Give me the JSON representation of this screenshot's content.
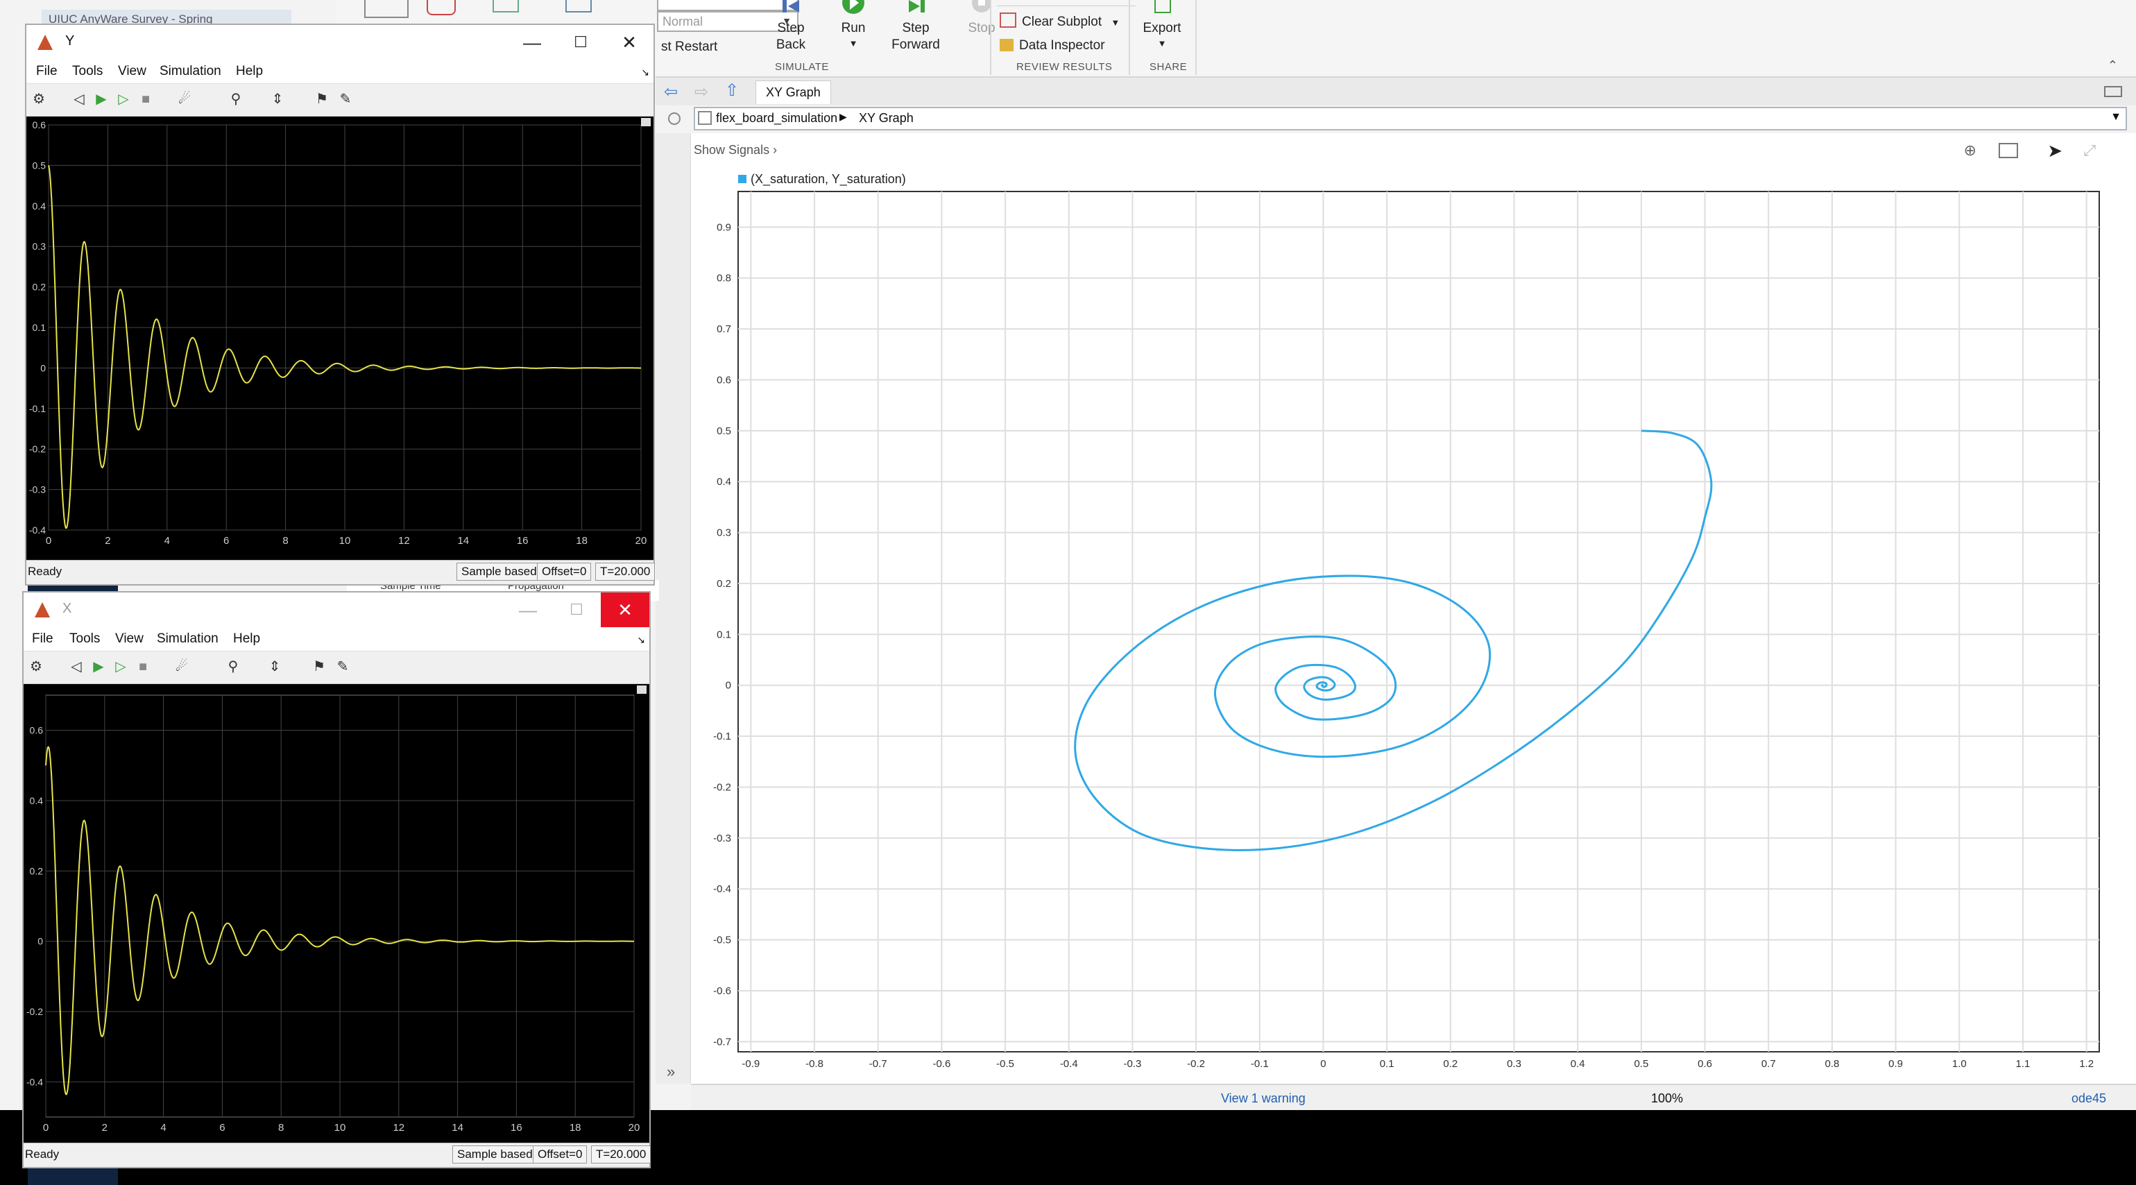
{
  "main": {
    "ribbon": {
      "mode_select": {
        "value": "Normal"
      },
      "fast_restart_label": "st Restart",
      "step_back": "Step Back",
      "run": "Run",
      "step_forward": "Step Forward",
      "stop": "Stop",
      "clear_subplot": "Clear Subplot",
      "data_inspector": "Data Inspector",
      "export": "Export",
      "groups": {
        "simulate": "SIMULATE",
        "review": "REVIEW RESULTS",
        "share": "SHARE"
      }
    },
    "tab_label": "XY Graph",
    "breadcrumb": {
      "model": "flex_board_simulation",
      "block": "XY Graph"
    },
    "show_signals": "Show Signals",
    "status": {
      "warning": "View 1 warning",
      "zoom": "100%",
      "solver": "ode45"
    },
    "colors": {
      "accent": "#2fa8e6",
      "series": "#2fa8e6",
      "trace": "#e6e34a",
      "close_red": "#e81123"
    }
  },
  "chart_data": [
    {
      "type": "line",
      "legend": "(X_saturation, Y_saturation)",
      "xlim": [
        -0.92,
        1.22
      ],
      "ylim": [
        -0.72,
        0.97
      ],
      "xticks": [
        "-0.9",
        "-0.8",
        "-0.7",
        "-0.6",
        "-0.5",
        "-0.4",
        "-0.3",
        "-0.2",
        "-0.1",
        "0",
        "0.1",
        "0.2",
        "0.3",
        "0.4",
        "0.5",
        "0.6",
        "0.7",
        "0.8",
        "0.9",
        "1.0",
        "1.1",
        "1.2"
      ],
      "yticks": [
        "0.9",
        "0.8",
        "0.7",
        "0.6",
        "0.5",
        "0.4",
        "0.3",
        "0.2",
        "0.1",
        "0",
        "-0.1",
        "-0.2",
        "-0.3",
        "-0.4",
        "-0.5",
        "-0.6",
        "-0.7"
      ],
      "grid": true,
      "series": [
        {
          "points": [
            [
              0.5,
              0.5
            ],
            [
              0.55,
              0.495
            ],
            [
              0.59,
              0.47
            ],
            [
              0.61,
              0.4
            ],
            [
              0.6,
              0.33
            ],
            [
              0.58,
              0.25
            ],
            [
              0.53,
              0.14
            ],
            [
              0.47,
              0.04
            ],
            [
              0.38,
              -0.06
            ],
            [
              0.28,
              -0.15
            ],
            [
              0.17,
              -0.23
            ],
            [
              0.05,
              -0.29
            ],
            [
              -0.07,
              -0.32
            ],
            [
              -0.19,
              -0.32
            ],
            [
              -0.29,
              -0.29
            ],
            [
              -0.36,
              -0.22
            ],
            [
              -0.39,
              -0.13
            ],
            [
              -0.37,
              -0.03
            ],
            [
              -0.3,
              0.07
            ],
            [
              -0.2,
              0.15
            ],
            [
              -0.08,
              0.2
            ],
            [
              0.04,
              0.215
            ],
            [
              0.14,
              0.2
            ],
            [
              0.22,
              0.15
            ],
            [
              0.26,
              0.08
            ],
            [
              0.25,
              0.0
            ],
            [
              0.2,
              -0.07
            ],
            [
              0.12,
              -0.12
            ],
            [
              0.02,
              -0.14
            ],
            [
              -0.07,
              -0.13
            ],
            [
              -0.14,
              -0.09
            ],
            [
              -0.17,
              -0.02
            ],
            [
              -0.15,
              0.04
            ],
            [
              -0.1,
              0.08
            ],
            [
              -0.03,
              0.095
            ],
            [
              0.03,
              0.09
            ],
            [
              0.08,
              0.06
            ],
            [
              0.11,
              0.02
            ],
            [
              0.11,
              -0.02
            ],
            [
              0.08,
              -0.05
            ],
            [
              0.03,
              -0.065
            ],
            [
              -0.02,
              -0.065
            ],
            [
              -0.06,
              -0.04
            ],
            [
              -0.075,
              -0.01
            ],
            [
              -0.065,
              0.015
            ],
            [
              -0.04,
              0.035
            ],
            [
              -0.01,
              0.04
            ],
            [
              0.02,
              0.035
            ],
            [
              0.04,
              0.02
            ],
            [
              0.05,
              0.0
            ],
            [
              0.045,
              -0.015
            ],
            [
              0.025,
              -0.025
            ],
            [
              0.0,
              -0.028
            ],
            [
              -0.02,
              -0.02
            ],
            [
              -0.03,
              -0.005
            ],
            [
              -0.025,
              0.008
            ],
            [
              -0.01,
              0.015
            ],
            [
              0.005,
              0.015
            ],
            [
              0.015,
              0.008
            ],
            [
              0.018,
              0.0
            ],
            [
              0.012,
              -0.008
            ],
            [
              0.002,
              -0.01
            ],
            [
              -0.008,
              -0.006
            ],
            [
              -0.01,
              0.0
            ],
            [
              -0.005,
              0.005
            ],
            [
              0.002,
              0.005
            ],
            [
              0.005,
              0.002
            ],
            [
              0.004,
              -0.002
            ],
            [
              0.0,
              -0.003
            ],
            [
              -0.002,
              0.0
            ],
            [
              0.0,
              0.0
            ]
          ]
        }
      ]
    },
    {
      "type": "line",
      "window_title": "Y",
      "xlim": [
        0,
        20
      ],
      "ylim": [
        -0.4,
        0.6
      ],
      "xticks": [
        "0",
        "2",
        "4",
        "6",
        "8",
        "10",
        "12",
        "14",
        "16",
        "18",
        "20"
      ],
      "yticks": [
        "0.6",
        "0.5",
        "0.4",
        "0.3",
        "0.2",
        "0.1",
        "0",
        "-0.1",
        "-0.2",
        "-0.3",
        "-0.4"
      ],
      "grid": true,
      "signal": {
        "initial": 0.5,
        "freq": 0.82,
        "decay": 0.39,
        "phase": 0.0
      }
    },
    {
      "type": "line",
      "window_title": "X",
      "xlim": [
        0,
        20
      ],
      "ylim": [
        -0.5,
        0.7
      ],
      "xticks": [
        "0",
        "2",
        "4",
        "6",
        "8",
        "10",
        "12",
        "14",
        "16",
        "18",
        "20"
      ],
      "yticks": [
        "0.6",
        "0.4",
        "0.2",
        "0",
        "-0.2",
        "-0.4"
      ],
      "grid": true,
      "signal": {
        "initial": 0.5,
        "peak_first": 0.62,
        "freq": 0.82,
        "decay": 0.39,
        "phase": 0.6
      }
    }
  ],
  "scopes": {
    "y": {
      "title": "Y",
      "menu": [
        "File",
        "Tools",
        "View",
        "Simulation",
        "Help"
      ],
      "status": "Ready",
      "sample": "Sample based",
      "offset": "Offset=0",
      "time": "T=20.000"
    },
    "x": {
      "title": "X",
      "menu": [
        "File",
        "Tools",
        "View",
        "Simulation",
        "Help"
      ],
      "status": "Ready",
      "sample": "Sample based",
      "offset": "Offset=0",
      "time": "T=20.000"
    }
  },
  "background_fragments": {
    "browser_tab": "UIUC AnyWare Survey - Spring",
    "sample_time": "Sample Time",
    "propagation": "Propagation"
  }
}
